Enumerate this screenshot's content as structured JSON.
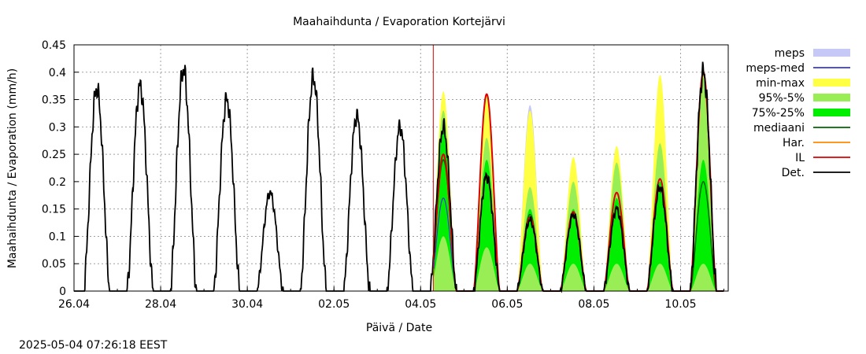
{
  "chart_data": {
    "type": "line",
    "title": "Maahaihdunta / Evaporation  Kortejärvi",
    "xlabel": "Päivä / Date",
    "ylabel": "Maahaihdunta / Evaporation (mm/h)",
    "timestamp": "2025-05-04 07:26:18 EEST",
    "x_range": [
      "26.04",
      "11.05"
    ],
    "x_unit": "day index from 26.04 (0 = 26.04 00:00)",
    "x_domain": [
      0,
      15.1
    ],
    "ylim": [
      0,
      0.45
    ],
    "x_ticks": [
      "26.04",
      "28.04",
      "30.04",
      "02.05",
      "04.05",
      "06.05",
      "08.05",
      "10.05"
    ],
    "y_ticks": [
      "0",
      "0.05",
      "0.1",
      "0.15",
      "0.2",
      "0.25",
      "0.3",
      "0.35",
      "0.4",
      "0.45"
    ],
    "grid": true,
    "legend_position": "right",
    "forecast_start_marker": "04.05 07:00",
    "colors": {
      "meps": "#c6c8f5",
      "meps_med": "#3a3ac8",
      "minmax": "#ffff44",
      "p95_5": "#99ee55",
      "p75_25": "#00ee00",
      "mediaani": "#006400",
      "har": "#ff8800",
      "il": "#dd0000",
      "det": "#000000",
      "now_line": "#cc0000"
    },
    "legend": [
      {
        "label": "meps",
        "kind": "band",
        "color": "#c6c8f5"
      },
      {
        "label": "meps-med",
        "kind": "line",
        "color": "#3a3ac8"
      },
      {
        "label": "min-max",
        "kind": "band",
        "color": "#ffff44"
      },
      {
        "label": "95%-5%",
        "kind": "band",
        "color": "#99ee55"
      },
      {
        "label": "75%-25%",
        "kind": "band",
        "color": "#00ee00"
      },
      {
        "label": "mediaani",
        "kind": "line",
        "color": "#006400"
      },
      {
        "label": "Har.",
        "kind": "line",
        "color": "#ff8800"
      },
      {
        "label": "IL",
        "kind": "line",
        "color": "#dd0000"
      },
      {
        "label": "Det.",
        "kind": "line",
        "color": "#000000"
      }
    ],
    "observed_daily_peaks": [
      {
        "date": "26.04",
        "peak": 0.37
      },
      {
        "date": "27.04",
        "peak": 0.375
      },
      {
        "date": "28.04",
        "peak": 0.405
      },
      {
        "date": "29.04",
        "peak": 0.35
      },
      {
        "date": "30.04",
        "peak": 0.18
      },
      {
        "date": "01.05",
        "peak": 0.39
      },
      {
        "date": "02.05",
        "peak": 0.32
      },
      {
        "date": "03.05",
        "peak": 0.3
      }
    ],
    "forecast_daily": [
      {
        "date": "04.05",
        "min": 0.0,
        "max": 0.365,
        "p5": 0.0,
        "p95": 0.33,
        "p25": 0.1,
        "p75": 0.3,
        "median": 0.24,
        "meps_max": 0.17,
        "meps_med": 0.17,
        "har": 0.25,
        "il": 0.25,
        "det": 0.3
      },
      {
        "date": "05.05",
        "min": 0.0,
        "max": 0.36,
        "p5": 0.0,
        "p95": 0.28,
        "p25": 0.08,
        "p75": 0.24,
        "median": 0.21,
        "meps_max": 0.22,
        "meps_med": 0.21,
        "har": 0.21,
        "il": 0.36,
        "det": 0.21
      },
      {
        "date": "06.05",
        "min": 0.0,
        "max": 0.33,
        "p5": 0.0,
        "p95": 0.19,
        "p25": 0.05,
        "p75": 0.15,
        "median": 0.14,
        "meps_max": 0.34,
        "meps_med": 0.13,
        "har": 0.13,
        "il": 0.135,
        "det": 0.13
      },
      {
        "date": "07.05",
        "min": 0.0,
        "max": 0.245,
        "p5": 0.0,
        "p95": 0.2,
        "p25": 0.05,
        "p75": 0.15,
        "median": 0.14,
        "meps_max": 0.14,
        "meps_med": 0.14,
        "har": 0.14,
        "il": 0.145,
        "det": 0.14
      },
      {
        "date": "08.05",
        "min": 0.0,
        "max": 0.265,
        "p5": 0.0,
        "p95": 0.235,
        "p25": 0.05,
        "p75": 0.17,
        "median": 0.15,
        "meps_max": 0.15,
        "meps_med": 0.15,
        "har": 0.15,
        "il": 0.18,
        "det": 0.15
      },
      {
        "date": "09.05",
        "min": 0.0,
        "max": 0.395,
        "p5": 0.0,
        "p95": 0.27,
        "p25": 0.05,
        "p75": 0.2,
        "median": 0.19,
        "meps_max": 0.19,
        "meps_med": 0.19,
        "har": 0.19,
        "il": 0.205,
        "det": 0.19
      },
      {
        "date": "10.05",
        "min": 0.0,
        "max": 0.405,
        "p5": 0.0,
        "p95": 0.39,
        "p25": 0.05,
        "p75": 0.24,
        "median": 0.2,
        "meps_max": 0.4,
        "meps_med": 0.4,
        "har": 0.4,
        "il": 0.4,
        "det": 0.4
      }
    ]
  }
}
